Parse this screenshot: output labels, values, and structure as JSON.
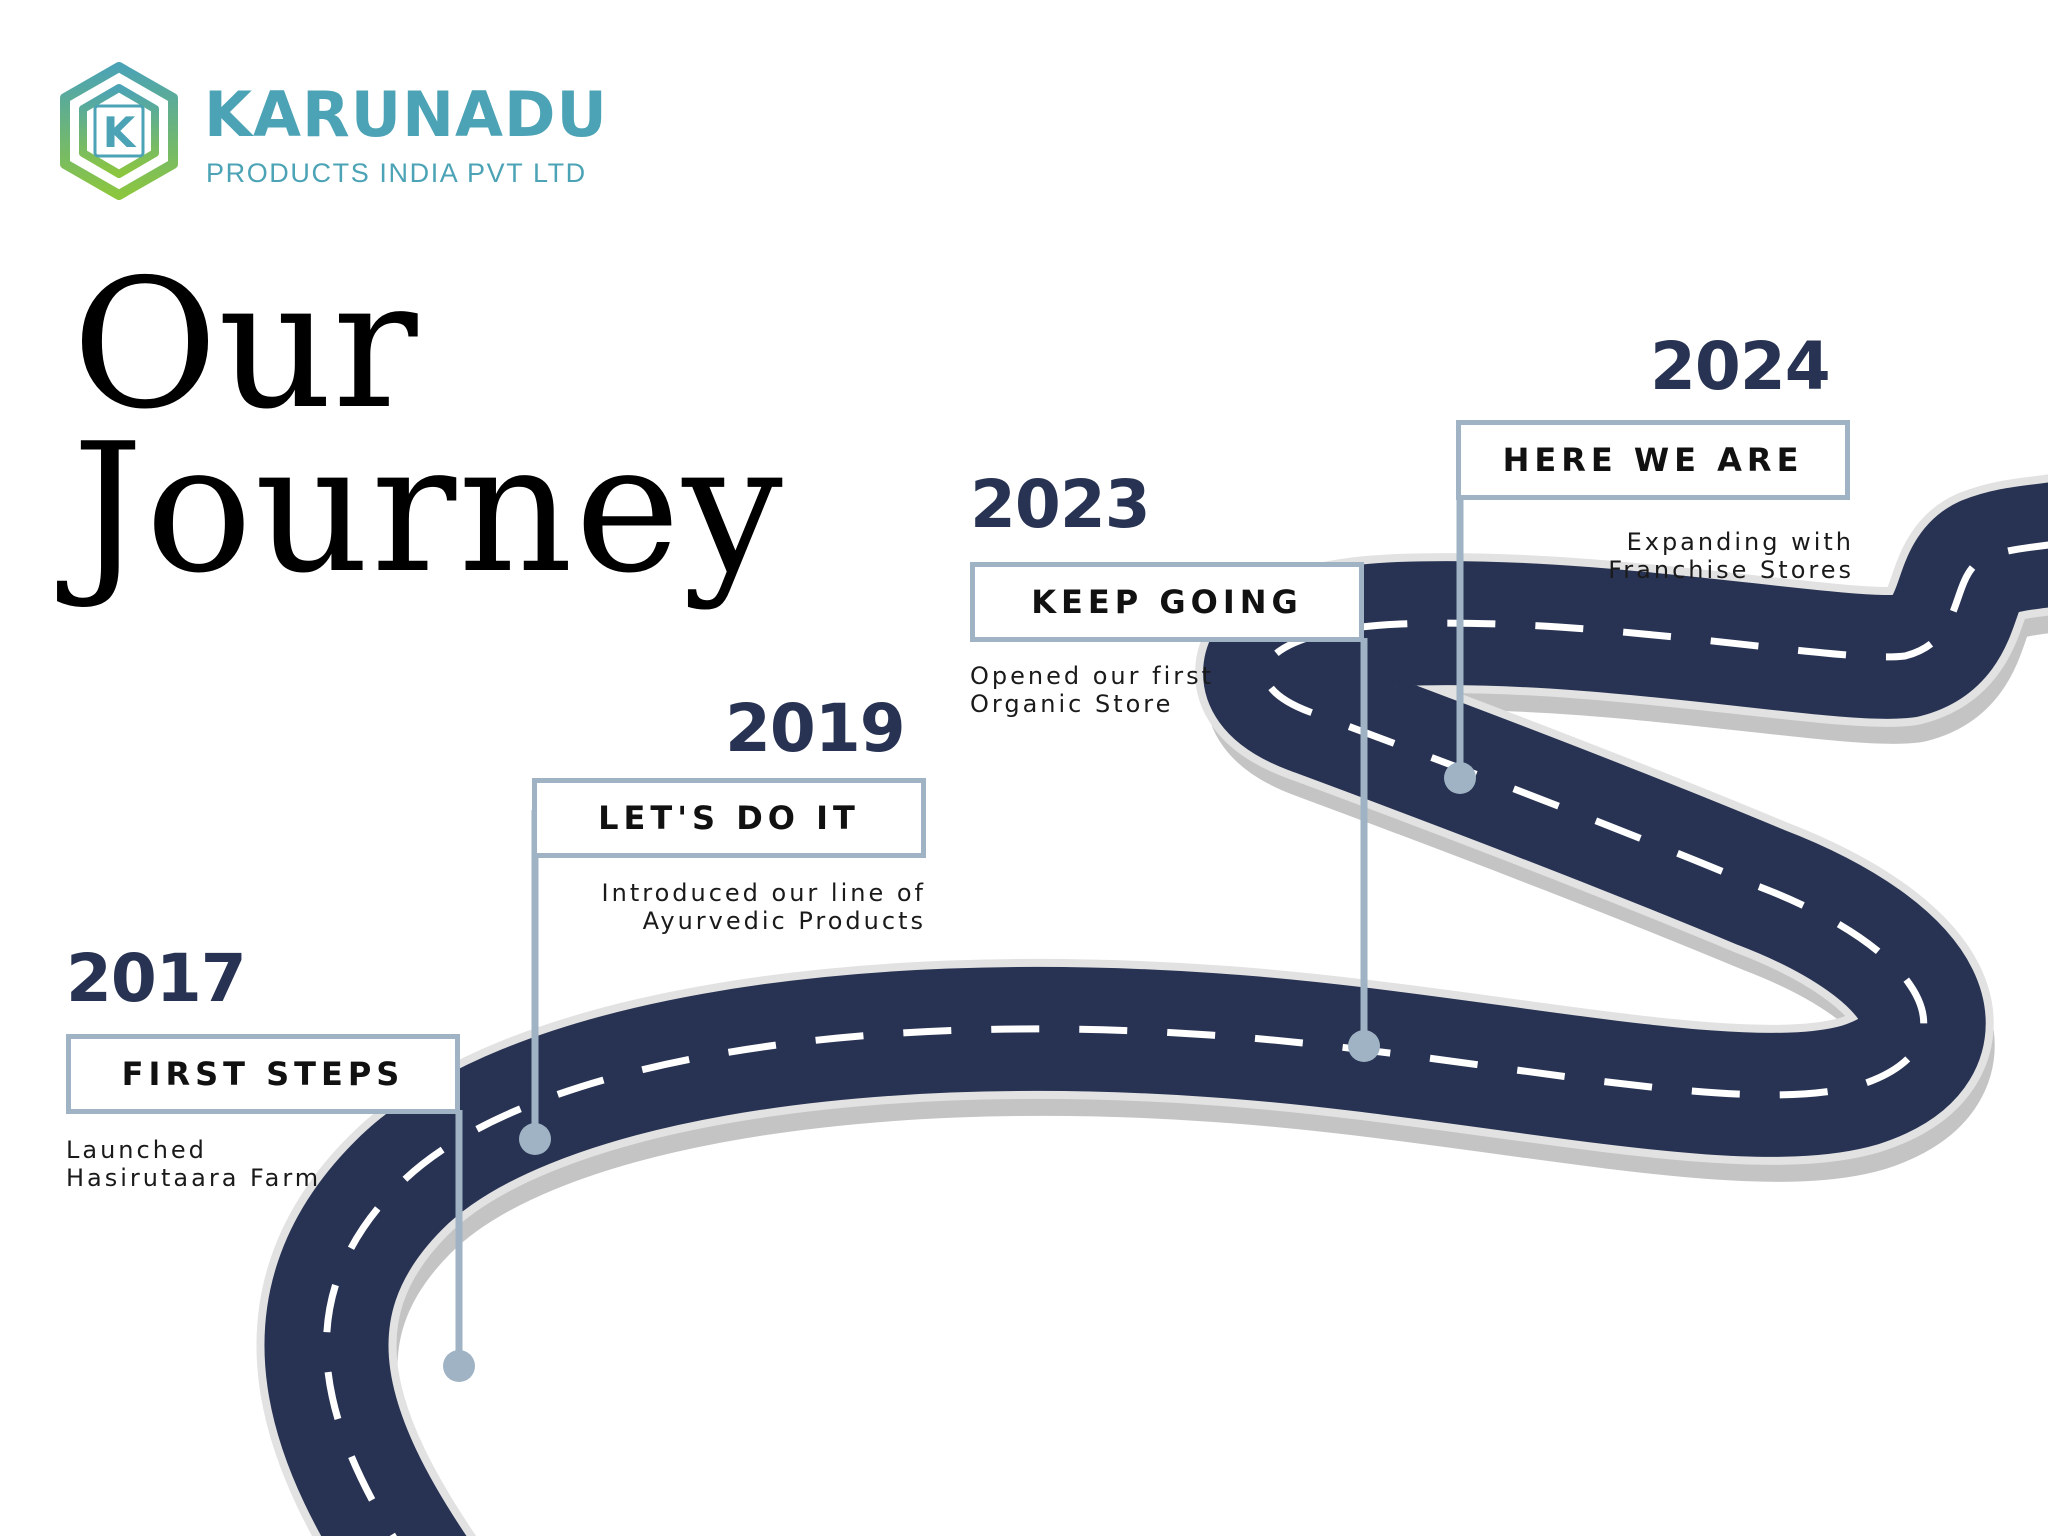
{
  "brand": {
    "name": "KARUNADU",
    "subtitle": "PRODUCTS INDIA PVT LTD",
    "monogram": "K",
    "colors": {
      "primary": "#4ba3b5",
      "green": "#8cc63f"
    }
  },
  "headline": {
    "line1": "Our",
    "line2": "Journey"
  },
  "milestones": [
    {
      "year": "2017",
      "title": "FIRST STEPS",
      "desc": [
        "Launched",
        "Hasirutaara Farm"
      ]
    },
    {
      "year": "2019",
      "title": "LET'S DO IT",
      "desc": [
        "Introduced our line of",
        "Ayurvedic Products"
      ]
    },
    {
      "year": "2023",
      "title": "KEEP GOING",
      "desc": [
        "Opened our first",
        "Organic Store"
      ]
    },
    {
      "year": "2024",
      "title": "HERE WE ARE",
      "desc": [
        "Expanding with",
        "Franchise Stores"
      ]
    }
  ],
  "colors": {
    "road": "#283353",
    "road_edge": "#e2e2e2",
    "road_shadow": "#c4c4c4",
    "lane_marking": "#ffffff",
    "marker": "#9fb3c4",
    "year": "#283353"
  }
}
